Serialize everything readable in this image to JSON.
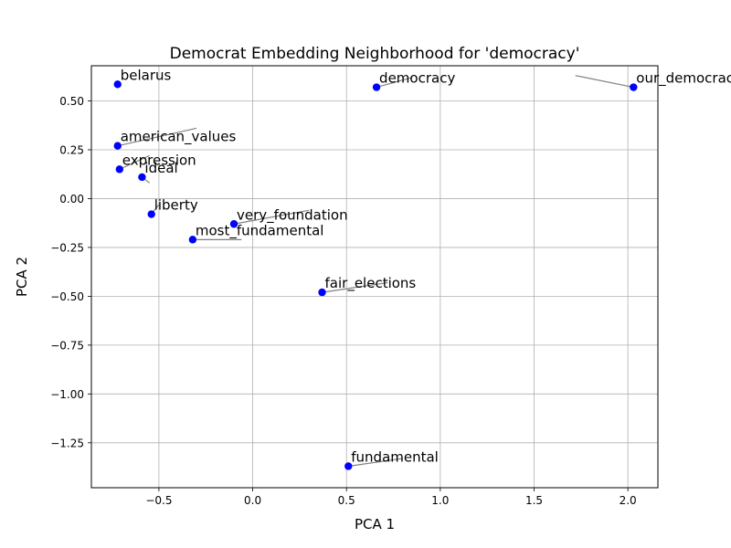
{
  "chart_data": {
    "type": "scatter",
    "title": "Democrat Embedding Neighborhood for 'democracy'",
    "xlabel": "PCA 1",
    "ylabel": "PCA 2",
    "xlim": [
      -0.86,
      2.16
    ],
    "ylim": [
      -1.48,
      0.68
    ],
    "xticks": [
      -0.5,
      0.0,
      0.5,
      1.0,
      1.5,
      2.0
    ],
    "xtick_labels": [
      "−0.5",
      "0.0",
      "0.5",
      "1.0",
      "1.5",
      "2.0"
    ],
    "yticks": [
      0.5,
      0.25,
      0.0,
      -0.25,
      -0.5,
      -0.75,
      -1.0,
      -1.25
    ],
    "ytick_labels": [
      "0.50",
      "0.25",
      "0.00",
      "−0.25",
      "−0.50",
      "−0.75",
      "−1.00",
      "−1.25"
    ],
    "grid": true,
    "marker_color": "#0000ff",
    "points": [
      {
        "label": "belarus",
        "x": -0.72,
        "y": 0.585,
        "lx": -0.72,
        "ly": 0.6
      },
      {
        "label": "democracy",
        "x": 0.66,
        "y": 0.57,
        "lx": 0.85,
        "ly": 0.62
      },
      {
        "label": "our_democracy",
        "x": 2.03,
        "y": 0.57,
        "lx": 1.72,
        "ly": 0.63
      },
      {
        "label": "american_values",
        "x": -0.72,
        "y": 0.27,
        "lx": -0.3,
        "ly": 0.36
      },
      {
        "label": "expression",
        "x": -0.71,
        "y": 0.15,
        "lx": -0.55,
        "ly": 0.22
      },
      {
        "label": "ideal",
        "x": -0.59,
        "y": 0.11,
        "lx": -0.55,
        "ly": 0.08
      },
      {
        "label": "liberty",
        "x": -0.54,
        "y": -0.08,
        "lx": -0.5,
        "ly": -0.03
      },
      {
        "label": "very_foundation",
        "x": -0.1,
        "y": -0.13,
        "lx": 0.3,
        "ly": -0.06
      },
      {
        "label": "most_fundamental",
        "x": -0.32,
        "y": -0.21,
        "lx": -0.06,
        "ly": -0.21
      },
      {
        "label": "fair_elections",
        "x": 0.37,
        "y": -0.48,
        "lx": 0.72,
        "ly": -0.43
      },
      {
        "label": "fundamental",
        "x": 0.51,
        "y": -1.37,
        "lx": 0.8,
        "ly": -1.33
      }
    ]
  }
}
